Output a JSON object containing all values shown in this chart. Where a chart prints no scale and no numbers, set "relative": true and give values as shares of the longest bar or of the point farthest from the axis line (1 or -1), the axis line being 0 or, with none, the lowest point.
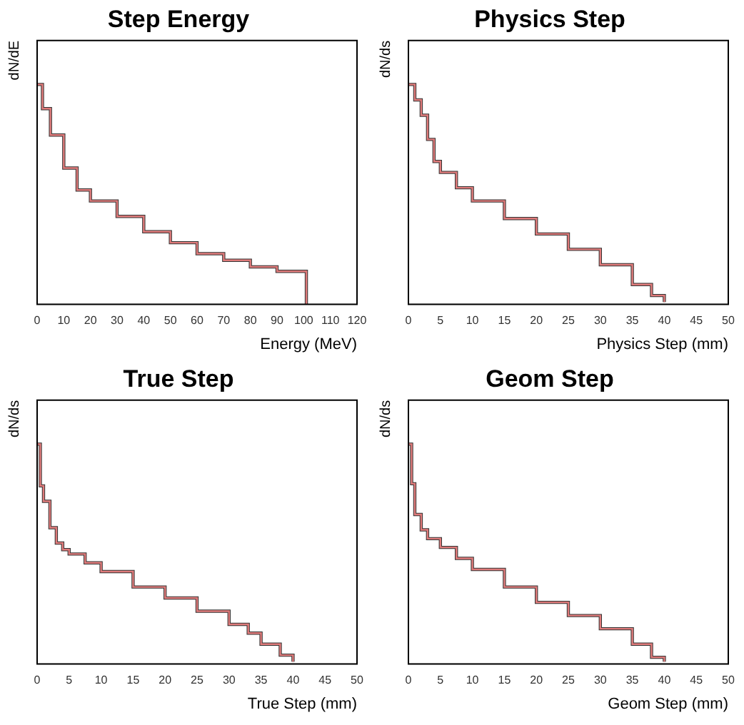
{
  "chart_data": [
    {
      "type": "step",
      "title": "Step Energy",
      "xlabel": "Energy (MeV)",
      "ylabel": "dN/dE",
      "relative": true,
      "xlim": [
        0,
        120
      ],
      "xticks": [
        0,
        10,
        20,
        30,
        40,
        50,
        60,
        70,
        80,
        90,
        100,
        110,
        120
      ],
      "x": [
        0,
        2,
        5,
        10,
        15,
        20,
        30,
        40,
        50,
        60,
        70,
        80,
        90,
        100,
        101
      ],
      "series": [
        {
          "color": "#333333",
          "values": [
            1,
            0.89,
            0.77,
            0.62,
            0.52,
            0.47,
            0.4,
            0.33,
            0.28,
            0.23,
            0.2,
            0.17,
            0.15,
            0.15,
            0
          ]
        },
        {
          "color": "#e07b7b",
          "values": [
            1,
            0.89,
            0.77,
            0.62,
            0.52,
            0.47,
            0.4,
            0.33,
            0.28,
            0.23,
            0.2,
            0.17,
            0.15,
            0.15,
            0
          ]
        }
      ]
    },
    {
      "type": "step",
      "title": "Physics Step",
      "xlabel": "Physics Step (mm)",
      "ylabel": "dN/ds",
      "relative": true,
      "xlim": [
        0,
        50
      ],
      "xticks": [
        0,
        5,
        10,
        15,
        20,
        25,
        30,
        35,
        40,
        45,
        50
      ],
      "x": [
        0,
        1,
        2,
        3,
        4,
        5,
        7.5,
        10,
        15,
        20,
        25,
        30,
        35,
        38,
        40
      ],
      "series": [
        {
          "color": "#333333",
          "values": [
            1,
            0.93,
            0.86,
            0.75,
            0.65,
            0.6,
            0.53,
            0.47,
            0.39,
            0.32,
            0.25,
            0.18,
            0.09,
            0.04,
            0.01
          ]
        },
        {
          "color": "#e07b7b",
          "values": [
            1,
            0.93,
            0.86,
            0.75,
            0.65,
            0.6,
            0.53,
            0.47,
            0.39,
            0.32,
            0.25,
            0.18,
            0.09,
            0.04,
            0.01
          ]
        }
      ]
    },
    {
      "type": "step",
      "title": "True Step",
      "xlabel": "True Step (mm)",
      "ylabel": "dN/ds",
      "relative": true,
      "xlim": [
        0,
        50
      ],
      "xticks": [
        0,
        5,
        10,
        15,
        20,
        25,
        30,
        35,
        40,
        45,
        50
      ],
      "x": [
        0,
        0.5,
        1,
        2,
        3,
        4,
        5,
        7.5,
        10,
        15,
        20,
        25,
        30,
        33,
        35,
        38,
        40
      ],
      "series": [
        {
          "color": "#333333",
          "values": [
            1,
            0.81,
            0.74,
            0.62,
            0.55,
            0.52,
            0.5,
            0.46,
            0.42,
            0.35,
            0.3,
            0.24,
            0.18,
            0.14,
            0.09,
            0.04,
            0.01
          ]
        },
        {
          "color": "#e07b7b",
          "values": [
            1,
            0.81,
            0.74,
            0.62,
            0.55,
            0.52,
            0.5,
            0.46,
            0.42,
            0.35,
            0.3,
            0.24,
            0.18,
            0.14,
            0.09,
            0.04,
            0.01
          ]
        }
      ]
    },
    {
      "type": "step",
      "title": "Geom Step",
      "xlabel": "Geom Step (mm)",
      "ylabel": "dN/ds",
      "relative": true,
      "xlim": [
        0,
        50
      ],
      "xticks": [
        0,
        5,
        10,
        15,
        20,
        25,
        30,
        35,
        40,
        45,
        50
      ],
      "x": [
        0,
        0.5,
        1,
        2,
        3,
        5,
        7.5,
        10,
        15,
        20,
        25,
        30,
        35,
        38,
        40
      ],
      "series": [
        {
          "color": "#333333",
          "values": [
            1,
            0.82,
            0.68,
            0.61,
            0.57,
            0.53,
            0.48,
            0.43,
            0.35,
            0.28,
            0.22,
            0.16,
            0.09,
            0.03,
            0.01
          ]
        },
        {
          "color": "#e07b7b",
          "values": [
            1,
            0.82,
            0.68,
            0.61,
            0.57,
            0.53,
            0.48,
            0.43,
            0.35,
            0.28,
            0.22,
            0.16,
            0.09,
            0.03,
            0.01
          ]
        }
      ]
    }
  ]
}
